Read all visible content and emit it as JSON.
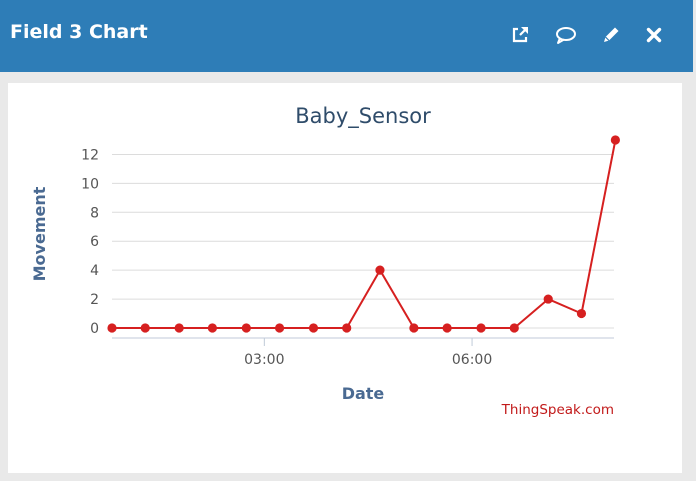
{
  "window": {
    "title": "Field 3 Chart",
    "buttons": [
      {
        "name": "open-external-button",
        "icon": "external-link-icon"
      },
      {
        "name": "comment-button",
        "icon": "comment-icon"
      },
      {
        "name": "edit-button",
        "icon": "pencil-icon"
      },
      {
        "name": "close-button",
        "icon": "close-icon"
      }
    ]
  },
  "chart_data": {
    "type": "line",
    "title": "Baby_Sensor",
    "xlabel": "Date",
    "ylabel": "Movement",
    "credit": "ThingSpeak.com",
    "color": "#d62020",
    "grid": true,
    "ylim": [
      0,
      13
    ],
    "yticks": [
      0,
      2,
      4,
      6,
      8,
      10,
      12
    ],
    "xticks": [
      {
        "label": "03:00",
        "value": 3.0
      },
      {
        "label": "06:00",
        "value": 6.0
      }
    ],
    "xlim": [
      0.8,
      8.05
    ],
    "series": [
      {
        "x": [
          0.8,
          1.28,
          1.77,
          2.25,
          2.74,
          3.22,
          3.71,
          4.19,
          4.67,
          5.16,
          5.64,
          6.13,
          6.61,
          7.1,
          7.58,
          8.07
        ],
        "values": [
          0,
          0,
          0,
          0,
          0,
          0,
          0,
          0,
          4,
          0,
          0,
          0,
          0,
          2,
          1,
          13
        ]
      }
    ]
  }
}
